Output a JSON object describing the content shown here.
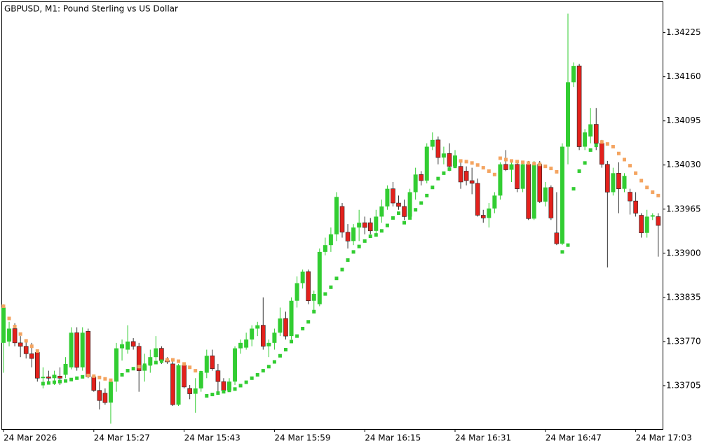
{
  "chart_data": {
    "type": "candlestick",
    "title": "GBPUSD, M1:  Pound Sterling vs US Dollar",
    "open": [
      1.33768,
      1.3377,
      1.33789,
      1.33768,
      1.33763,
      1.33752,
      1.33754,
      1.33716,
      1.33718,
      1.33716,
      1.33719,
      1.33721,
      1.33732,
      1.33783,
      1.33732,
      1.33785,
      1.33718,
      1.33698,
      1.33694,
      1.3368,
      1.33711,
      1.3376,
      1.33758,
      1.3377,
      1.33763,
      1.33727,
      1.33735,
      1.33747,
      1.3376,
      1.33742,
      1.33737,
      1.33677,
      1.33735,
      1.33701,
      1.33693,
      1.33701,
      1.33724,
      1.33749,
      1.33727,
      1.33711,
      1.33698,
      1.33711,
      1.3376,
      1.33761,
      1.33773,
      1.33789,
      1.33794,
      1.33763,
      1.33768,
      1.33783,
      1.33804,
      1.33778,
      1.3383,
      1.33856,
      1.33873,
      1.3383,
      1.33825,
      1.33902,
      1.33912,
      1.33928,
      1.33969,
      1.33931,
      1.33918,
      1.33938,
      1.33945,
      1.33945,
      1.33933,
      1.33954,
      1.33969,
      1.33995,
      1.33974,
      1.33969,
      1.33954,
      1.3399,
      1.34016,
      1.34007,
      1.34057,
      1.34067,
      1.34041,
      1.34047,
      1.34028,
      1.34028,
      1.34021,
      1.34007,
      1.34003,
      1.33956,
      1.33952,
      1.33966,
      1.33985,
      1.34031,
      1.34023,
      1.34031,
      1.33995,
      1.34031,
      1.33951,
      1.34031,
      1.33976,
      1.33997,
      1.3393,
      1.33914,
      1.34057,
      1.34152,
      1.34176,
      1.34057,
      1.34072,
      1.3409,
      1.34062,
      1.34031,
      1.3399,
      1.34018,
      1.33995,
      1.3399,
      1.33977,
      1.33956,
      1.3393,
      1.33954,
      1.33954
    ],
    "high": [
      1.33825,
      1.33799,
      1.33797,
      1.33778,
      1.33773,
      1.33768,
      1.33758,
      1.33732,
      1.33727,
      1.33727,
      1.33732,
      1.33747,
      1.33791,
      1.33791,
      1.33791,
      1.33789,
      1.33721,
      1.33711,
      1.33701,
      1.33711,
      1.33768,
      1.33773,
      1.33794,
      1.33775,
      1.33768,
      1.33752,
      1.33758,
      1.33778,
      1.33763,
      1.33747,
      1.33742,
      1.33737,
      1.33739,
      1.33706,
      1.33716,
      1.33727,
      1.33758,
      1.33758,
      1.33737,
      1.33716,
      1.33716,
      1.33763,
      1.33773,
      1.33783,
      1.33794,
      1.33799,
      1.33835,
      1.33773,
      1.33789,
      1.3382,
      1.33814,
      1.33835,
      1.33866,
      1.33876,
      1.33876,
      1.33845,
      1.33907,
      1.33923,
      1.33938,
      1.3399,
      1.33974,
      1.33943,
      1.33943,
      1.33964,
      1.33954,
      1.33952,
      1.33964,
      1.33979,
      1.34,
      1.34005,
      1.33985,
      1.33979,
      1.33995,
      1.34026,
      1.34021,
      1.34062,
      1.34078,
      1.34072,
      1.34057,
      1.34062,
      1.34052,
      1.34036,
      1.34028,
      1.34026,
      1.3401,
      1.33964,
      1.33974,
      1.3399,
      1.34034,
      1.34052,
      1.34036,
      1.34036,
      1.34036,
      1.34036,
      1.34036,
      1.34036,
      1.34005,
      1.34,
      1.3399,
      1.34062,
      1.34253,
      1.34181,
      1.34179,
      1.34083,
      1.34114,
      1.34114,
      1.34067,
      1.34036,
      1.34026,
      1.34034,
      1.34018,
      1.33995,
      1.3399,
      1.33959,
      1.33964,
      1.33959,
      1.33959
    ],
    "low": [
      1.33724,
      1.33763,
      1.33763,
      1.33747,
      1.33745,
      1.33732,
      1.33711,
      1.33701,
      1.33708,
      1.33706,
      1.33706,
      1.33716,
      1.33729,
      1.33727,
      1.33727,
      1.33716,
      1.33696,
      1.3367,
      1.33677,
      1.33649,
      1.33696,
      1.33742,
      1.33752,
      1.33758,
      1.33696,
      1.33711,
      1.33724,
      1.33742,
      1.33737,
      1.33737,
      1.33675,
      1.33675,
      1.33701,
      1.33685,
      1.33665,
      1.33696,
      1.33716,
      1.33727,
      1.33696,
      1.33694,
      1.33696,
      1.33706,
      1.33752,
      1.33758,
      1.33763,
      1.33778,
      1.33758,
      1.33747,
      1.33758,
      1.33778,
      1.33773,
      1.33773,
      1.3382,
      1.33848,
      1.33825,
      1.33814,
      1.33822,
      1.33897,
      1.33902,
      1.33918,
      1.33923,
      1.33907,
      1.33912,
      1.33918,
      1.33928,
      1.33928,
      1.33928,
      1.33945,
      1.33964,
      1.33969,
      1.33964,
      1.33949,
      1.33952,
      1.33979,
      1.34,
      1.34003,
      1.34052,
      1.34031,
      1.34031,
      1.34021,
      1.34026,
      1.33995,
      1.34,
      1.33987,
      1.33954,
      1.33945,
      1.33938,
      1.33959,
      1.33979,
      1.34021,
      1.34005,
      1.3399,
      1.3399,
      1.33949,
      1.33949,
      1.33974,
      1.33969,
      1.33949,
      1.33912,
      1.33912,
      1.34031,
      1.34145,
      1.34052,
      1.34052,
      1.34062,
      1.34052,
      1.34026,
      1.33879,
      1.33985,
      1.33959,
      1.3399,
      1.33957,
      1.33954,
      1.33923,
      1.33923,
      1.33949,
      1.33895
    ],
    "close": [
      1.3382,
      1.33789,
      1.33768,
      1.33763,
      1.33752,
      1.33745,
      1.33716,
      1.33718,
      1.33716,
      1.33721,
      1.33716,
      1.33737,
      1.33783,
      1.33732,
      1.33783,
      1.33718,
      1.33698,
      1.33683,
      1.3368,
      1.33711,
      1.3376,
      1.33766,
      1.3377,
      1.33763,
      1.33727,
      1.33735,
      1.33747,
      1.3376,
      1.33742,
      1.3374,
      1.33677,
      1.33735,
      1.33703,
      1.33693,
      1.33701,
      1.33724,
      1.33749,
      1.3373,
      1.33711,
      1.33698,
      1.33711,
      1.3376,
      1.33768,
      1.33773,
      1.33789,
      1.33794,
      1.33763,
      1.33768,
      1.33783,
      1.33804,
      1.33778,
      1.3383,
      1.33856,
      1.33873,
      1.3383,
      1.3384,
      1.33902,
      1.33912,
      1.33928,
      1.33983,
      1.33931,
      1.33918,
      1.33938,
      1.33945,
      1.33938,
      1.33933,
      1.33954,
      1.33969,
      1.33995,
      1.33974,
      1.33969,
      1.33954,
      1.3399,
      1.34016,
      1.34007,
      1.34057,
      1.34067,
      1.34041,
      1.34047,
      1.34028,
      1.34044,
      1.34005,
      1.34007,
      1.34003,
      1.33956,
      1.33952,
      1.33966,
      1.33985,
      1.34031,
      1.34023,
      1.34031,
      1.33995,
      1.34031,
      1.33951,
      1.34031,
      1.33976,
      1.33997,
      1.33952,
      1.33914,
      1.34057,
      1.34152,
      1.34176,
      1.34057,
      1.34078,
      1.3409,
      1.34062,
      1.34031,
      1.3399,
      1.34018,
      1.33995,
      1.34014,
      1.33977,
      1.33959,
      1.3393,
      1.33954,
      1.33956,
      1.33941
    ],
    "sar": [
      1.33822,
      1.33804,
      1.33792,
      1.33781,
      1.33771,
      1.33763,
      1.33756,
      1.33708,
      1.33709,
      1.3371,
      1.33711,
      1.33712,
      1.33714,
      1.33716,
      1.33718,
      1.3372,
      1.33719,
      1.33717,
      1.33715,
      1.33713,
      1.33716,
      1.33721,
      1.33727,
      1.3373,
      1.33733,
      1.33735,
      1.33737,
      1.33739,
      1.33741,
      1.33743,
      1.33743,
      1.33741,
      1.33737,
      1.33732,
      1.33727,
      1.33724,
      1.3369,
      1.33692,
      1.33694,
      1.33696,
      1.33698,
      1.337,
      1.33705,
      1.3371,
      1.33716,
      1.33721,
      1.33727,
      1.33733,
      1.3374,
      1.33749,
      1.33758,
      1.3377,
      1.33778,
      1.33789,
      1.33799,
      1.33814,
      1.3383,
      1.3384,
      1.3385,
      1.33863,
      1.33876,
      1.3389,
      1.33902,
      1.3391,
      1.33918,
      1.33925,
      1.33927,
      1.33933,
      1.33941,
      1.33952,
      1.33959,
      1.33945,
      1.33952,
      1.33964,
      1.33974,
      1.33985,
      1.33997,
      1.3401,
      1.34018,
      1.34024,
      1.34028,
      1.34036,
      1.34035,
      1.34033,
      1.3403,
      1.34026,
      1.34021,
      1.34016,
      1.3404,
      1.34038,
      1.34036,
      1.34035,
      1.34034,
      1.34033,
      1.34032,
      1.34031,
      1.34028,
      1.34025,
      1.3402,
      1.33902,
      1.33912,
      1.33995,
      1.34021,
      1.34033,
      1.34052,
      1.34059,
      1.34064,
      1.34061,
      1.34057,
      1.34047,
      1.34038,
      1.34029,
      1.34018,
      1.34007,
      1.33997,
      1.3399,
      1.33985
    ],
    "up_color": "#32cd32",
    "down_color": "#e3211c",
    "sar_above_color": "#f4a460",
    "sar_below_color": "#32cd32",
    "ylim": [
      1.33641,
      1.34271
    ],
    "yticks": [
      1.33705,
      {
        "value": 1.3377,
        "label": "1.33770"
      },
      1.33835,
      {
        "value": 1.339,
        "label": "1.33900"
      },
      1.33965,
      {
        "value": 1.3403,
        "label": "1.34030"
      },
      1.34095,
      {
        "value": 1.3416,
        "label": "1.34160"
      },
      1.34225
    ],
    "xticks": [
      {
        "value": 0,
        "label": "24 Mar 2026"
      },
      {
        "value": 16,
        "label": "24 Mar 15:27"
      },
      {
        "value": 32,
        "label": "24 Mar 15:43"
      },
      {
        "value": 48,
        "label": "24 Mar 15:59"
      },
      {
        "value": 64,
        "label": "24 Mar 16:15"
      },
      {
        "value": 80,
        "label": "24 Mar 16:31"
      },
      {
        "value": 96,
        "label": "24 Mar 16:47"
      },
      {
        "value": 112,
        "label": "24 Mar 17:03"
      }
    ]
  }
}
